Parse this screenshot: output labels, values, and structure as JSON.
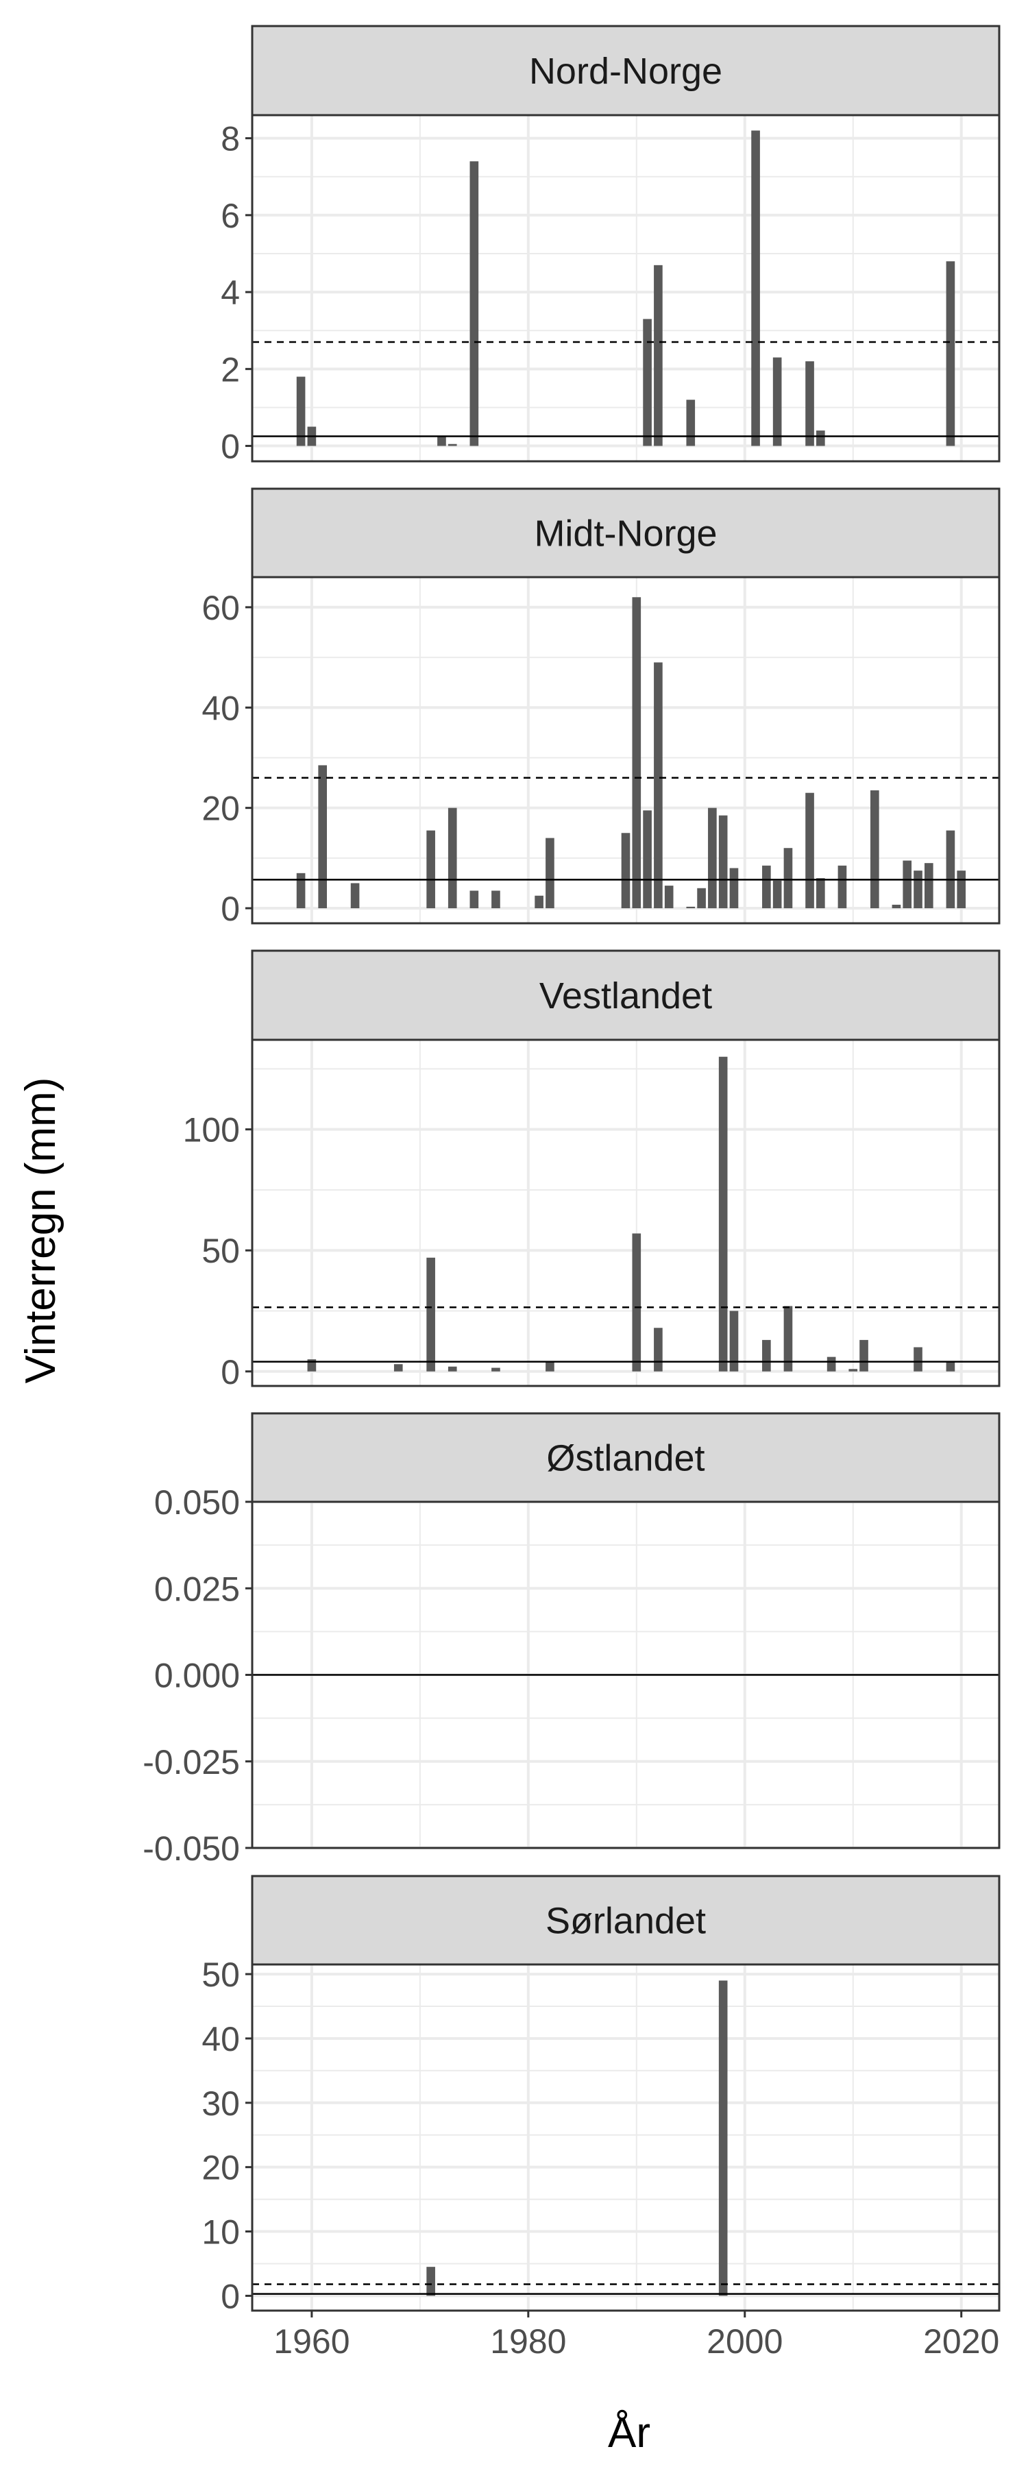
{
  "figure": {
    "ylabel": "Vinterregn (mm)",
    "xlabel": "År",
    "x_ticks": [
      "1960",
      "1980",
      "2000",
      "2020"
    ]
  },
  "colors": {
    "bar": "#595959",
    "strip": "#d9d9d9",
    "grid": "#ebebeb",
    "axis_text": "#4d4d4d"
  },
  "chart_data": [
    {
      "type": "bar",
      "title": "Nord-Norge",
      "xlim": [
        1954.5,
        2023.5
      ],
      "ylim": [
        -0.4,
        8.6
      ],
      "yticks": [
        0,
        2,
        4,
        6,
        8
      ],
      "ytick_labels": [
        "0",
        "2",
        "4",
        "6",
        "8"
      ],
      "hline_solid": 0.25,
      "hline_dashed": 2.7,
      "x": [
        1959,
        1960,
        1972,
        1973,
        1975,
        1991,
        1992,
        1995,
        2001,
        2003,
        2006,
        2007,
        2019
      ],
      "values": [
        1.8,
        0.5,
        0.25,
        0.05,
        7.4,
        3.3,
        4.7,
        1.2,
        8.2,
        2.3,
        2.2,
        0.4,
        4.8
      ]
    },
    {
      "type": "bar",
      "title": "Midt-Norge",
      "xlim": [
        1954.5,
        2023.5
      ],
      "ylim": [
        -3,
        66
      ],
      "yticks": [
        0,
        20,
        40,
        60
      ],
      "ytick_labels": [
        "0",
        "20",
        "40",
        "60"
      ],
      "hline_solid": 5.7,
      "hline_dashed": 26,
      "x": [
        1959,
        1961,
        1964,
        1971,
        1973,
        1975,
        1977,
        1981,
        1982,
        1989,
        1990,
        1991,
        1992,
        1993,
        1995,
        1996,
        1997,
        1998,
        1999,
        2002,
        2003,
        2004,
        2006,
        2007,
        2009,
        2012,
        2014,
        2015,
        2016,
        2017,
        2019,
        2020
      ],
      "values": [
        7,
        28.5,
        5,
        15.5,
        20,
        3.5,
        3.5,
        2.5,
        14,
        15,
        62,
        19.5,
        49,
        4.5,
        0.3,
        4,
        20,
        18.5,
        8,
        8.5,
        5.5,
        12,
        23,
        6,
        8.5,
        23.5,
        0.7,
        9.5,
        7.5,
        9,
        15.5,
        7.5
      ]
    },
    {
      "type": "bar",
      "title": "Vestlandet",
      "xlim": [
        1954.5,
        2023.5
      ],
      "ylim": [
        -6,
        137
      ],
      "yticks": [
        0,
        50,
        100
      ],
      "ytick_labels": [
        "0",
        "50",
        "100"
      ],
      "hline_solid": 4,
      "hline_dashed": 26.5,
      "x": [
        1960,
        1968,
        1971,
        1973,
        1977,
        1982,
        1990,
        1992,
        1998,
        1999,
        2002,
        2004,
        2008,
        2010,
        2011,
        2016,
        2019
      ],
      "values": [
        5,
        3,
        47,
        2,
        1.5,
        4,
        57,
        18,
        130,
        25,
        13,
        27,
        6,
        1,
        13,
        10,
        4
      ]
    },
    {
      "type": "bar",
      "title": "Østlandet",
      "xlim": [
        1954.5,
        2023.5
      ],
      "ylim": [
        -0.05,
        0.05
      ],
      "yticks": [
        -0.05,
        -0.025,
        0,
        0.025,
        0.05
      ],
      "ytick_labels": [
        "-0.050",
        "-0.025",
        "0.000",
        "0.025",
        "0.050"
      ],
      "hline_solid": 0,
      "x": [],
      "values": []
    },
    {
      "type": "bar",
      "title": "Sørlandet",
      "xlim": [
        1954.5,
        2023.5
      ],
      "ylim": [
        -2.3,
        51.5
      ],
      "yticks": [
        0,
        10,
        20,
        30,
        40,
        50
      ],
      "ytick_labels": [
        "0",
        "10",
        "20",
        "30",
        "40",
        "50"
      ],
      "hline_solid": 0.3,
      "hline_dashed": 1.8,
      "x": [
        1971,
        1998
      ],
      "values": [
        4.5,
        49
      ]
    }
  ]
}
